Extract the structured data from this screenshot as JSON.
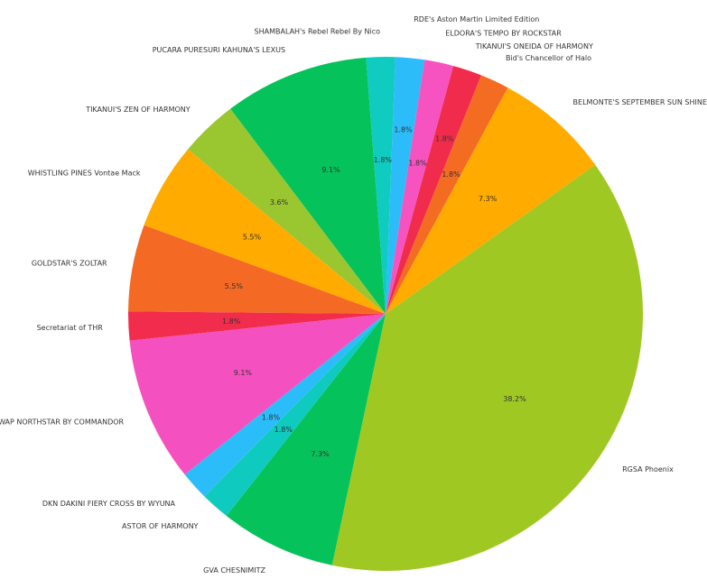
{
  "chart_data": {
    "type": "pie",
    "title": "",
    "start_angle_deg": -102,
    "direction": "counterclockwise",
    "slices": [
      {
        "label": "RGSA Phoenix",
        "value": 21,
        "pct": "38.2%",
        "color": "#a0c823"
      },
      {
        "label": "BELMONTE'S SEPTEMBER SUN SHINE",
        "value": 4,
        "pct": "7.3%",
        "color": "#ffab00"
      },
      {
        "label": "Bid's Chancellor of Halo",
        "value": 1,
        "pct": "1.8%",
        "color": "#f46b22"
      },
      {
        "label": "TIKANUI'S ONEIDA OF HARMONY",
        "value": 1,
        "pct": "1.8%",
        "color": "#f12b4b"
      },
      {
        "label": "ELDORA'S TEMPO BY ROCKSTAR",
        "value": 1,
        "pct": "1.8%",
        "color": "#f652c0"
      },
      {
        "label": "RDE's Aston Martin Limited Edition",
        "value": 1,
        "pct": "1.8%",
        "color": "#2cbcf9"
      },
      {
        "label": "SHAMBALAH's Rebel Rebel By Nico",
        "value": 1,
        "pct": "1.8%",
        "color": "#10cbbf"
      },
      {
        "label": "PUCARA PURESURI KAHUNA'S LEXUS",
        "value": 5,
        "pct": "9.1%",
        "color": "#05c25a"
      },
      {
        "label": "TIKANUI'S ZEN OF HARMONY",
        "value": 2,
        "pct": "3.6%",
        "color": "#9ac630"
      },
      {
        "label": "WHISTLING PINES Vontae Mack",
        "value": 3,
        "pct": "5.5%",
        "color": "#ffab00"
      },
      {
        "label": "GOLDSTAR'S ZOLTAR",
        "value": 3,
        "pct": "5.5%",
        "color": "#f46a24"
      },
      {
        "label": "Secretariat of THR",
        "value": 1,
        "pct": "1.8%",
        "color": "#f22c4c"
      },
      {
        "label": "WAP NORTHSTAR BY COMMANDOR",
        "value": 5,
        "pct": "9.1%",
        "color": "#f550c0"
      },
      {
        "label": "DKN DAKINI FIERY CROSS BY WYUNA",
        "value": 1,
        "pct": "1.8%",
        "color": "#2bbdf9"
      },
      {
        "label": "ASTOR OF HARMONY",
        "value": 1,
        "pct": "1.8%",
        "color": "#0fcbbf"
      },
      {
        "label": "GVA CHESNIMITZ",
        "value": 4,
        "pct": "7.3%",
        "color": "#06c25a"
      }
    ]
  }
}
